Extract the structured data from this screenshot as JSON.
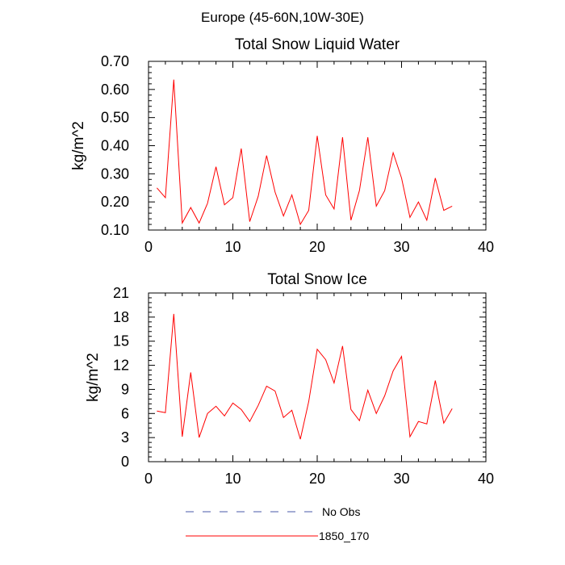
{
  "figure_title": "Europe (45-60N,10W-30E)",
  "legend": {
    "entries": [
      {
        "label": "No Obs",
        "color": "#4a5aa8",
        "dash": true
      },
      {
        "label": "1850_170",
        "color": "#ff0000",
        "dash": false
      }
    ]
  },
  "chart_data": [
    {
      "type": "line",
      "title": "Total Snow Liquid Water",
      "xlabel": "",
      "ylabel": "kg/m^2",
      "xlim": [
        0,
        40
      ],
      "ylim": [
        0.1,
        0.7
      ],
      "xticks": [
        0,
        10,
        20,
        30,
        40
      ],
      "xtick_labels": [
        "0",
        "10",
        "20",
        "30",
        "40"
      ],
      "yticks": [
        0.1,
        0.2,
        0.3,
        0.4,
        0.5,
        0.6,
        0.7
      ],
      "ytick_labels": [
        "0.10",
        "0.20",
        "0.30",
        "0.40",
        "0.50",
        "0.60",
        "0.70"
      ],
      "grid": false,
      "series": [
        {
          "name": "1850_170",
          "color": "#ff0000",
          "x": [
            1,
            2,
            3,
            4,
            5,
            6,
            7,
            8,
            9,
            10,
            11,
            12,
            13,
            14,
            15,
            16,
            17,
            18,
            19,
            20,
            21,
            22,
            23,
            24,
            25,
            26,
            27,
            28,
            29,
            30,
            31,
            32,
            33,
            34,
            35,
            36
          ],
          "values": [
            0.25,
            0.215,
            0.635,
            0.125,
            0.18,
            0.125,
            0.195,
            0.325,
            0.19,
            0.215,
            0.39,
            0.13,
            0.22,
            0.365,
            0.235,
            0.15,
            0.225,
            0.12,
            0.17,
            0.435,
            0.225,
            0.175,
            0.43,
            0.135,
            0.24,
            0.43,
            0.185,
            0.24,
            0.375,
            0.285,
            0.145,
            0.2,
            0.135,
            0.285,
            0.17,
            0.185
          ]
        }
      ]
    },
    {
      "type": "line",
      "title": "Total Snow Ice",
      "xlabel": "",
      "ylabel": "kg/m^2",
      "xlim": [
        0,
        40
      ],
      "ylim": [
        0,
        21
      ],
      "xticks": [
        0,
        10,
        20,
        30,
        40
      ],
      "xtick_labels": [
        "0",
        "10",
        "20",
        "30",
        "40"
      ],
      "yticks": [
        0,
        3,
        6,
        9,
        12,
        15,
        18,
        21
      ],
      "ytick_labels": [
        "0",
        "3",
        "6",
        "9",
        "12",
        "15",
        "18",
        "21"
      ],
      "grid": false,
      "series": [
        {
          "name": "1850_170",
          "color": "#ff0000",
          "x": [
            1,
            2,
            3,
            4,
            5,
            6,
            7,
            8,
            9,
            10,
            11,
            12,
            13,
            14,
            15,
            16,
            17,
            18,
            19,
            20,
            21,
            22,
            23,
            24,
            25,
            26,
            27,
            28,
            29,
            30,
            31,
            32,
            33,
            34,
            35,
            36
          ],
          "values": [
            6.3,
            6.1,
            18.4,
            3.1,
            11.1,
            3.0,
            6.0,
            6.9,
            5.7,
            7.3,
            6.5,
            5.0,
            7.0,
            9.4,
            8.8,
            5.5,
            6.4,
            2.8,
            7.5,
            14.0,
            12.7,
            9.8,
            14.4,
            6.5,
            5.1,
            8.9,
            6.0,
            8.2,
            11.3,
            13.1,
            3.1,
            5.0,
            4.7,
            10.1,
            4.8,
            6.6
          ]
        }
      ]
    }
  ]
}
